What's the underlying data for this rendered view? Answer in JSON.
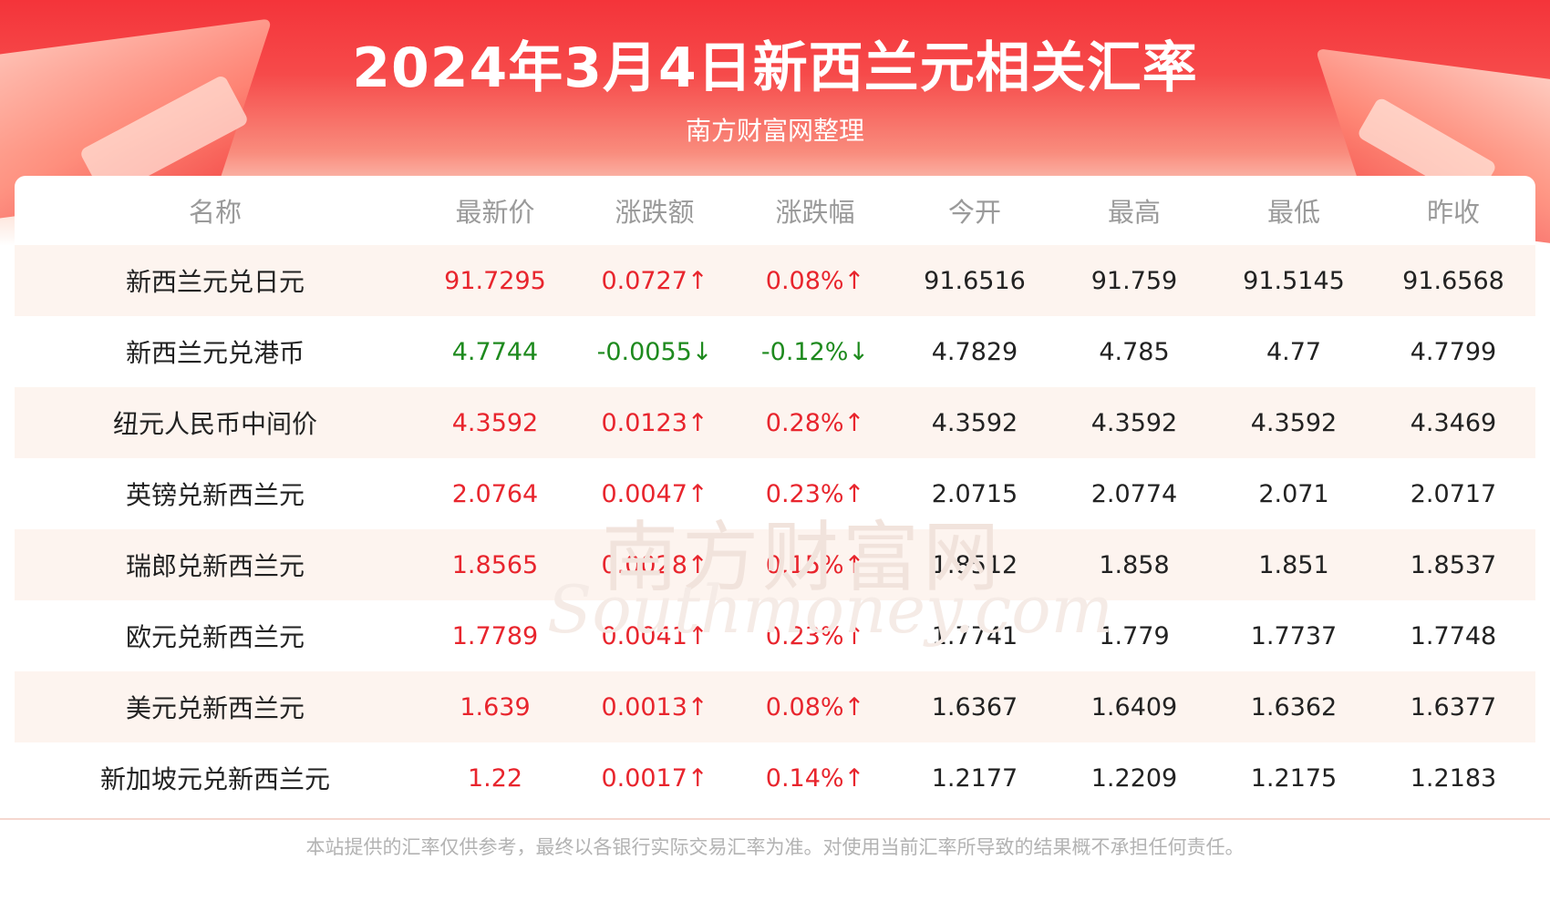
{
  "header": {
    "title": "2024年3月4日新西兰元相关汇率",
    "subtitle": "南方财富网整理"
  },
  "table": {
    "columns": [
      "名称",
      "最新价",
      "涨跌额",
      "涨跌幅",
      "今开",
      "最高",
      "最低",
      "昨收"
    ],
    "rows": [
      {
        "name": "新西兰元兑日元",
        "latest": "91.7295",
        "change": "0.0727↑",
        "change_pct": "0.08%↑",
        "open": "91.6516",
        "high": "91.759",
        "low": "91.5145",
        "prev_close": "91.6568",
        "trend": "up"
      },
      {
        "name": "新西兰元兑港币",
        "latest": "4.7744",
        "change": "-0.0055↓",
        "change_pct": "-0.12%↓",
        "open": "4.7829",
        "high": "4.785",
        "low": "4.77",
        "prev_close": "4.7799",
        "trend": "down"
      },
      {
        "name": "纽元人民币中间价",
        "latest": "4.3592",
        "change": "0.0123↑",
        "change_pct": "0.28%↑",
        "open": "4.3592",
        "high": "4.3592",
        "low": "4.3592",
        "prev_close": "4.3469",
        "trend": "up"
      },
      {
        "name": "英镑兑新西兰元",
        "latest": "2.0764",
        "change": "0.0047↑",
        "change_pct": "0.23%↑",
        "open": "2.0715",
        "high": "2.0774",
        "low": "2.071",
        "prev_close": "2.0717",
        "trend": "up"
      },
      {
        "name": "瑞郎兑新西兰元",
        "latest": "1.8565",
        "change": "0.0028↑",
        "change_pct": "0.15%↑",
        "open": "1.8512",
        "high": "1.858",
        "low": "1.851",
        "prev_close": "1.8537",
        "trend": "up"
      },
      {
        "name": "欧元兑新西兰元",
        "latest": "1.7789",
        "change": "0.0041↑",
        "change_pct": "0.23%↑",
        "open": "1.7741",
        "high": "1.779",
        "low": "1.7737",
        "prev_close": "1.7748",
        "trend": "up"
      },
      {
        "name": "美元兑新西兰元",
        "latest": "1.639",
        "change": "0.0013↑",
        "change_pct": "0.08%↑",
        "open": "1.6367",
        "high": "1.6409",
        "low": "1.6362",
        "prev_close": "1.6377",
        "trend": "up"
      },
      {
        "name": "新加坡元兑新西兰元",
        "latest": "1.22",
        "change": "0.0017↑",
        "change_pct": "0.14%↑",
        "open": "1.2177",
        "high": "1.2209",
        "low": "1.2175",
        "prev_close": "1.2183",
        "trend": "up"
      }
    ]
  },
  "watermark": {
    "cn": "南方财富网",
    "en": "Southmoney.com"
  },
  "footer": {
    "disclaimer": "本站提供的汇率仅供参考，最终以各银行实际交易汇率为准。对使用当前汇率所导致的结果概不承担任何责任。"
  },
  "colors": {
    "up": "#e8252d",
    "down": "#1e8a1e",
    "banner": "#f4343a"
  }
}
